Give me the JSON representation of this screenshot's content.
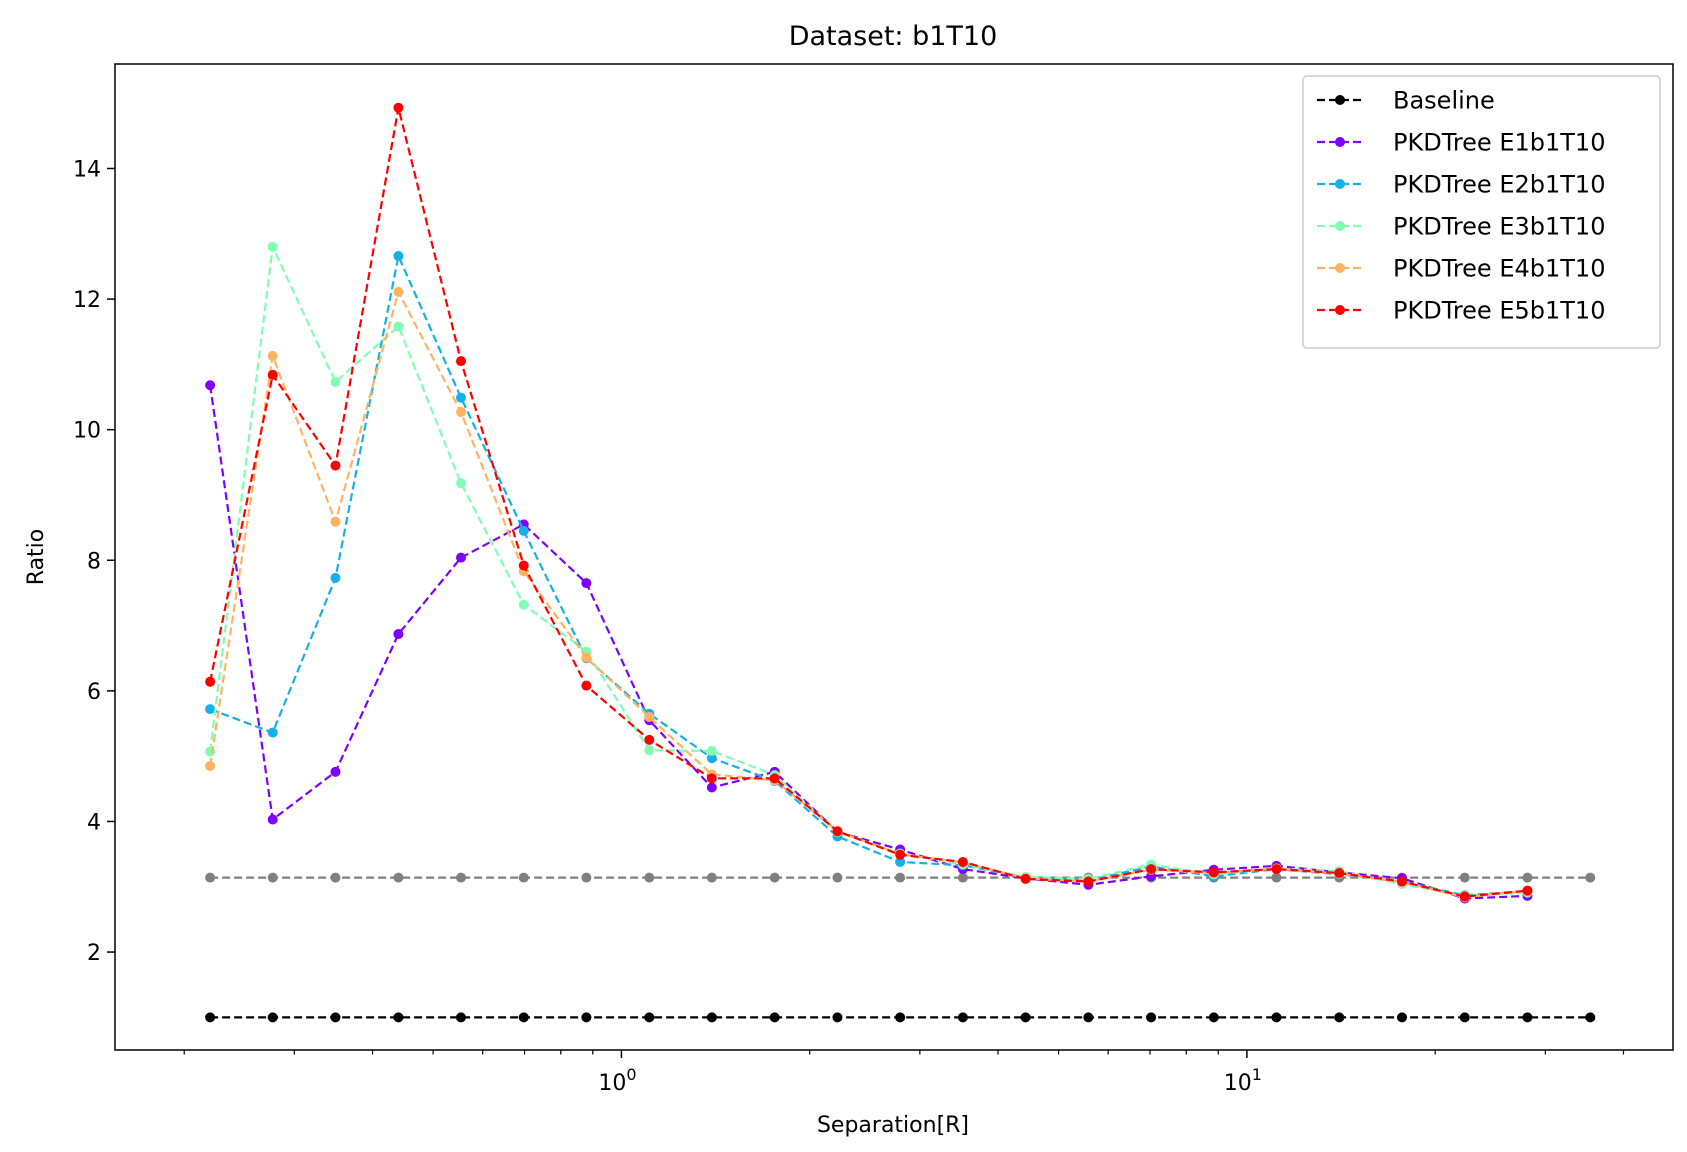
{
  "chart_data": {
    "type": "line",
    "title": "Dataset: b1T10",
    "xlabel": "Separation[R]",
    "ylabel": "Ratio",
    "xscale": "log",
    "xlim": [
      0.155,
      48
    ],
    "ylim": [
      0.5,
      15.6
    ],
    "grid": false,
    "legend_position": "top-right",
    "x_ticks": [
      {
        "value": 1,
        "base": "10",
        "exp": "0"
      },
      {
        "value": 10,
        "base": "10",
        "exp": "1"
      }
    ],
    "y_ticks": [
      {
        "value": 2,
        "label": "2"
      },
      {
        "value": 4,
        "label": "4"
      },
      {
        "value": 6,
        "label": "6"
      },
      {
        "value": 8,
        "label": "8"
      },
      {
        "value": 10,
        "label": "10"
      },
      {
        "value": 12,
        "label": "12"
      },
      {
        "value": 14,
        "label": "14"
      }
    ],
    "x": [
      0.22,
      0.277,
      0.349,
      0.44,
      0.554,
      0.698,
      0.879,
      1.108,
      1.395,
      1.758,
      2.215,
      2.79,
      3.515,
      4.428,
      5.579,
      7.028,
      8.853,
      11.15,
      14.05,
      17.7,
      22.3,
      28.09,
      35.4
    ],
    "series": [
      {
        "name": "Baseline",
        "color": "#000000",
        "legend": true,
        "values": [
          1,
          1,
          1,
          1,
          1,
          1,
          1,
          1,
          1,
          1,
          1,
          1,
          1,
          1,
          1,
          1,
          1,
          1,
          1,
          1,
          1,
          1,
          1
        ]
      },
      {
        "name": "",
        "color": "#808080",
        "legend": false,
        "values": [
          3.14,
          3.14,
          3.14,
          3.14,
          3.14,
          3.14,
          3.14,
          3.14,
          3.14,
          3.14,
          3.14,
          3.14,
          3.14,
          3.14,
          3.14,
          3.14,
          3.14,
          3.14,
          3.14,
          3.14,
          3.14,
          3.14,
          3.14
        ]
      },
      {
        "name": "PKDTree E1b1T10",
        "color": "#8000ff",
        "legend": true,
        "values": [
          10.68,
          4.03,
          4.76,
          6.87,
          8.04,
          8.55,
          7.65,
          5.55,
          4.52,
          4.76,
          3.84,
          3.57,
          3.27,
          3.13,
          3.03,
          3.16,
          3.26,
          3.32,
          3.22,
          3.13,
          2.82,
          2.86,
          null
        ]
      },
      {
        "name": "PKDTree E2b1T10",
        "color": "#14b1e6",
        "legend": true,
        "values": [
          5.72,
          5.36,
          7.73,
          12.66,
          10.49,
          8.45,
          6.5,
          5.65,
          4.97,
          4.62,
          3.77,
          3.38,
          3.33,
          3.14,
          3.1,
          3.31,
          3.16,
          3.27,
          3.19,
          3.08,
          2.87,
          2.93,
          null
        ]
      },
      {
        "name": "PKDTree E3b1T10",
        "color": "#80ffb4",
        "legend": true,
        "values": [
          5.07,
          12.8,
          10.73,
          11.58,
          9.18,
          7.32,
          6.6,
          5.09,
          5.08,
          4.71,
          3.84,
          3.51,
          3.34,
          3.15,
          3.12,
          3.34,
          3.19,
          3.28,
          3.24,
          3.04,
          2.86,
          2.91,
          null
        ]
      },
      {
        "name": "PKDTree E4b1T10",
        "color": "#ffb360",
        "legend": true,
        "values": [
          4.85,
          11.13,
          8.59,
          12.11,
          10.27,
          7.83,
          6.51,
          5.6,
          4.72,
          4.63,
          3.85,
          3.5,
          3.37,
          3.13,
          3.08,
          3.26,
          3.21,
          3.28,
          3.2,
          3.07,
          2.84,
          2.94,
          null
        ]
      },
      {
        "name": "PKDTree E5b1T10",
        "color": "#ff0000",
        "legend": true,
        "values": [
          6.14,
          10.84,
          9.45,
          14.93,
          11.05,
          7.92,
          6.08,
          5.25,
          4.66,
          4.66,
          3.85,
          3.49,
          3.38,
          3.12,
          3.08,
          3.27,
          3.22,
          3.27,
          3.21,
          3.08,
          2.85,
          2.94,
          null
        ]
      }
    ]
  }
}
